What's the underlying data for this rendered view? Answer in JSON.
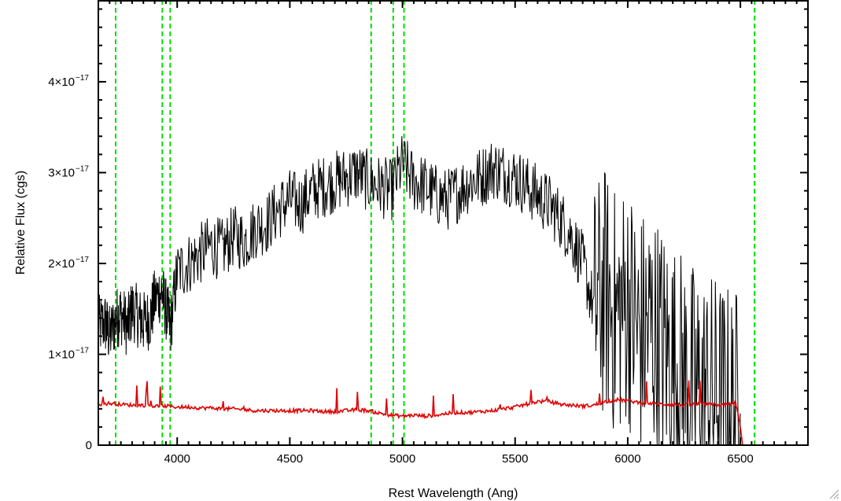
{
  "chart_data": {
    "type": "line",
    "title": "",
    "xlabel": "Rest Wavelength (Ang)",
    "ylabel": "Relative Flux (cgs)",
    "xlim": [
      3650,
      6800
    ],
    "ylim": [
      0,
      4.9e-17
    ],
    "x_ticks": [
      {
        "value": 4000,
        "label": "4000"
      },
      {
        "value": 4500,
        "label": "4500"
      },
      {
        "value": 5000,
        "label": "5000"
      },
      {
        "value": 5500,
        "label": "5500"
      },
      {
        "value": 6000,
        "label": "6000"
      },
      {
        "value": 6500,
        "label": "6500"
      }
    ],
    "y_ticks": [
      {
        "value": 0,
        "mantissa": "0",
        "exponent": ""
      },
      {
        "value": 1e-17,
        "mantissa": "1×10",
        "exponent": "−17"
      },
      {
        "value": 2e-17,
        "mantissa": "2×10",
        "exponent": "−17"
      },
      {
        "value": 3e-17,
        "mantissa": "3×10",
        "exponent": "−17"
      },
      {
        "value": 4e-17,
        "mantissa": "4×10",
        "exponent": "−17"
      }
    ],
    "grid": false,
    "reference_lines": {
      "color": "#00dd00",
      "style": "dashed",
      "x": [
        3727,
        3934,
        3969,
        4861,
        4959,
        5007,
        6563
      ]
    },
    "series": [
      {
        "color": "#000000",
        "x": [
          3650,
          3680,
          3700,
          3730,
          3750,
          3780,
          3800,
          3830,
          3850,
          3880,
          3900,
          3930,
          3950,
          3970,
          4000,
          4050,
          4100,
          4150,
          4200,
          4250,
          4300,
          4350,
          4400,
          4450,
          4500,
          4550,
          4600,
          4650,
          4700,
          4750,
          4800,
          4850,
          4900,
          4950,
          5000,
          5050,
          5100,
          5150,
          5200,
          5250,
          5300,
          5350,
          5400,
          5450,
          5500,
          5550,
          5600,
          5650,
          5700,
          5750,
          5800,
          5850,
          5900,
          5950,
          6000,
          6050,
          6100,
          6150,
          6200,
          6250,
          6300,
          6350,
          6400,
          6450,
          6500
        ],
        "y": [
          1.3e-17,
          1.35e-17,
          1.2e-17,
          1.4e-17,
          1.45e-17,
          1.3e-17,
          1.5e-17,
          1.4e-17,
          1.35e-17,
          1.4e-17,
          1.6e-17,
          1.7e-17,
          1.5e-17,
          1.3e-17,
          1.9e-17,
          2e-17,
          2.1e-17,
          2.2e-17,
          2.15e-17,
          2.3e-17,
          2.25e-17,
          2.4e-17,
          2.45e-17,
          2.6e-17,
          2.7e-17,
          2.65e-17,
          2.8e-17,
          2.85e-17,
          2.9e-17,
          2.95e-17,
          3e-17,
          2.9e-17,
          2.85e-17,
          2.8e-17,
          3.1e-17,
          2.9e-17,
          2.85e-17,
          2.75e-17,
          2.7e-17,
          2.8e-17,
          2.9e-17,
          2.95e-17,
          3.05e-17,
          3e-17,
          2.95e-17,
          2.85e-17,
          2.75e-17,
          2.65e-17,
          2.5e-17,
          2.3e-17,
          2e-17,
          1.5e-17,
          1.7e-17,
          1.4e-17,
          1.6e-17,
          1.2e-17,
          1.3e-17,
          1.1e-17,
          9e-18,
          7.5e-18,
          6e-18,
          5.5e-18,
          5e-18,
          4e-18,
          3.5e-18
        ]
      },
      {
        "color": "#e00000",
        "x": [
          3650,
          3700,
          3750,
          3800,
          3850,
          3900,
          3950,
          4000,
          4050,
          4100,
          4150,
          4200,
          4250,
          4300,
          4350,
          4400,
          4450,
          4500,
          4550,
          4600,
          4650,
          4700,
          4750,
          4800,
          4850,
          4900,
          4950,
          5000,
          5050,
          5100,
          5150,
          5200,
          5250,
          5300,
          5350,
          5400,
          5450,
          5500,
          5550,
          5600,
          5650,
          5700,
          5750,
          5800,
          5850,
          5900,
          5950,
          6000,
          6050,
          6100,
          6150,
          6200,
          6250,
          6300,
          6350,
          6400,
          6450,
          6480,
          6500,
          6510,
          6600,
          6700,
          6800
        ],
        "y": [
          4.5e-18,
          4.6e-18,
          4.5e-18,
          4.4e-18,
          4.4e-18,
          4.3e-18,
          4.3e-18,
          4.2e-18,
          4.2e-18,
          4.1e-18,
          4.1e-18,
          4e-18,
          4e-18,
          3.9e-18,
          3.8e-18,
          3.8e-18,
          3.8e-18,
          3.8e-18,
          3.8e-18,
          3.8e-18,
          3.7e-18,
          3.7e-18,
          3.8e-18,
          3.9e-18,
          3.8e-18,
          3.5e-18,
          3.3e-18,
          3.2e-18,
          3.3e-18,
          3.2e-18,
          3.3e-18,
          3.5e-18,
          3.6e-18,
          3.6e-18,
          3.7e-18,
          3.8e-18,
          4e-18,
          4.2e-18,
          4.5e-18,
          4.8e-18,
          4.8e-18,
          4.5e-18,
          4.4e-18,
          4.3e-18,
          4.4e-18,
          4.8e-18,
          5e-18,
          4.9e-18,
          4.7e-18,
          4.6e-18,
          4.5e-18,
          4.5e-18,
          4.4e-18,
          4.5e-18,
          4.5e-18,
          4.4e-18,
          4.5e-18,
          4.6e-18,
          2e-18,
          0,
          0,
          0,
          0
        ]
      }
    ]
  }
}
